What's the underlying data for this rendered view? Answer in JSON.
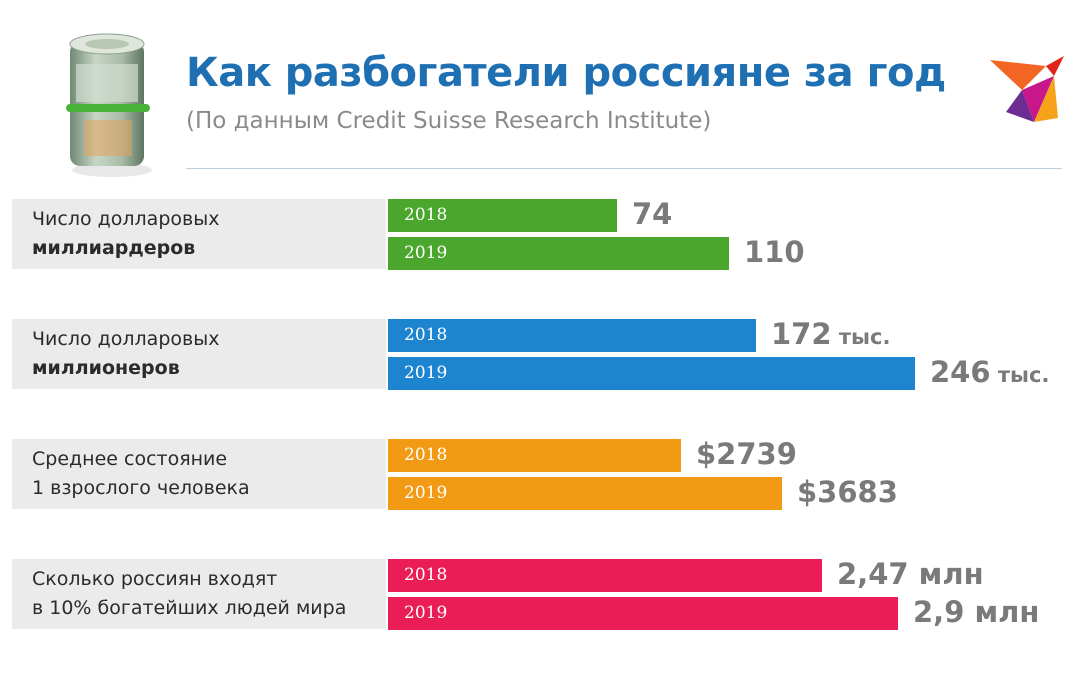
{
  "header": {
    "title": "Как разбогатели россияне за год",
    "subtitle": "(По данным Credit Suisse Research Institute)"
  },
  "colors": {
    "green": "#4aa62c",
    "blue": "#1d84cf",
    "orange": "#f29a14",
    "pink": "#ea1d57",
    "title": "#1f6fb3",
    "value_text": "#7a7a7a",
    "label_bg": "#ebebeb"
  },
  "icons": [
    "money-roll-icon",
    "bird-logo-icon"
  ],
  "chart_data": {
    "type": "bar",
    "orientation": "horizontal",
    "title": "Как разбогатели россияне за год",
    "subtitle": "(По данным Credit Suisse Research Institute)",
    "legend": "none",
    "grid": false,
    "groups": [
      {
        "label_line1": "Число долларовых",
        "label_line2": "миллиардеров",
        "line2_bold": true,
        "color": "#4aa62c",
        "bars": [
          {
            "year": "2018",
            "value": 74,
            "num_label": "74",
            "unit_label": ""
          },
          {
            "year": "2019",
            "value": 110,
            "num_label": "110",
            "unit_label": ""
          }
        ]
      },
      {
        "label_line1": "Число долларовых",
        "label_line2": "миллионеров",
        "line2_bold": true,
        "color": "#1d84cf",
        "bars": [
          {
            "year": "2018",
            "value": 172000,
            "num_label": "172",
            "unit_label": " тыс."
          },
          {
            "year": "2019",
            "value": 246000,
            "num_label": "246",
            "unit_label": " тыс."
          }
        ]
      },
      {
        "label_line1": "Среднее состояние",
        "label_line2": "1 взрослого человека",
        "line2_bold": false,
        "color": "#f29a14",
        "bars": [
          {
            "year": "2018",
            "value": 2739,
            "num_label": "$2739",
            "unit_label": ""
          },
          {
            "year": "2019",
            "value": 3683,
            "num_label": "$3683",
            "unit_label": ""
          }
        ]
      },
      {
        "label_line1": "Сколько россиян входят",
        "label_line2": "в 10% богатейших людей мира",
        "line2_bold": false,
        "color": "#ea1d57",
        "bars": [
          {
            "year": "2018",
            "value": 2.47,
            "num_label": "2,47 млн",
            "unit_label": ""
          },
          {
            "year": "2019",
            "value": 2.9,
            "num_label": "2,9 млн",
            "unit_label": ""
          }
        ]
      }
    ]
  }
}
